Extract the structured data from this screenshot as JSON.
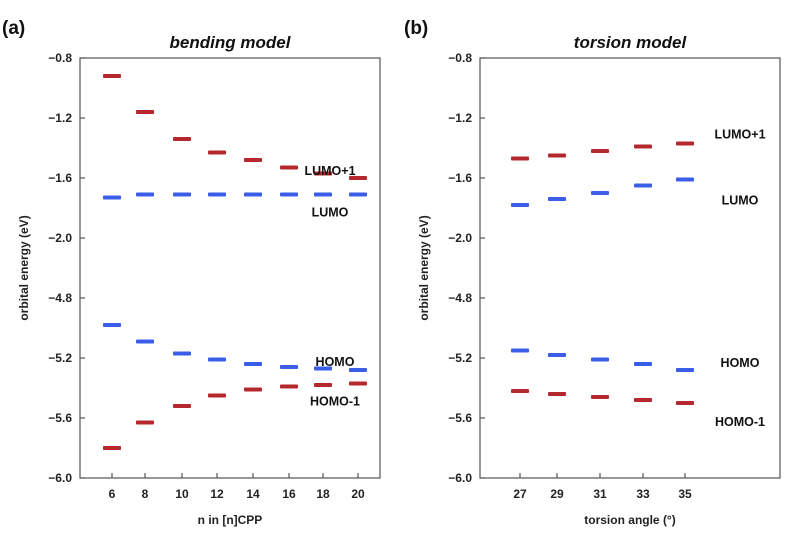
{
  "chart_data": [
    {
      "panel_label": "(a)",
      "title": "bending model",
      "type": "scatter",
      "marker": "horizontal-bar",
      "xlabel": "n in [n]CPP",
      "ylabel": "orbital energy (eV)",
      "categories": [
        "6",
        "8",
        "10",
        "12",
        "14",
        "16",
        "18",
        "20"
      ],
      "y_ticks": [
        "-0.8",
        "-1.2",
        "-1.6",
        "-2.0",
        "-4.8",
        "-5.2",
        "-5.6",
        "-6.0"
      ],
      "y_axis_break": "between -2.0 and -4.8",
      "series": [
        {
          "name": "LUMO+1",
          "color": "#b5282e",
          "values": [
            -0.92,
            -1.16,
            -1.34,
            -1.43,
            -1.48,
            -1.53,
            -1.57,
            -1.6
          ]
        },
        {
          "name": "LUMO",
          "color": "#3b5ee8",
          "values": [
            -1.73,
            -1.71,
            -1.71,
            -1.71,
            -1.71,
            -1.71,
            -1.71,
            -1.71
          ]
        },
        {
          "name": "HOMO",
          "color": "#3b5ee8",
          "values": [
            -4.98,
            -5.09,
            -5.17,
            -5.21,
            -5.24,
            -5.26,
            -5.27,
            -5.28
          ]
        },
        {
          "name": "HOMO-1",
          "color": "#b5282e",
          "values": [
            -5.8,
            -5.63,
            -5.52,
            -5.45,
            -5.41,
            -5.39,
            -5.38,
            -5.37
          ]
        }
      ]
    },
    {
      "panel_label": "(b)",
      "title": "torsion model",
      "type": "scatter",
      "marker": "horizontal-bar",
      "xlabel": "torsion angle (°)",
      "ylabel": "orbital energy (eV)",
      "categories": [
        "27",
        "29",
        "31",
        "33",
        "35"
      ],
      "y_ticks": [
        "-0.8",
        "-1.2",
        "-1.6",
        "-2.0",
        "-4.8",
        "-5.2",
        "-5.6",
        "-6.0"
      ],
      "y_axis_break": "between -2.0 and -4.8",
      "series": [
        {
          "name": "LUMO+1",
          "color": "#b5282e",
          "values": [
            -1.47,
            -1.45,
            -1.42,
            -1.39,
            -1.37
          ]
        },
        {
          "name": "LUMO",
          "color": "#3b5ee8",
          "values": [
            -1.78,
            -1.74,
            -1.7,
            -1.65,
            -1.61
          ]
        },
        {
          "name": "HOMO",
          "color": "#3b5ee8",
          "values": [
            -5.15,
            -5.18,
            -5.21,
            -5.24,
            -5.28
          ]
        },
        {
          "name": "HOMO-1",
          "color": "#b5282e",
          "values": [
            -5.42,
            -5.44,
            -5.46,
            -5.48,
            -5.5
          ]
        }
      ]
    }
  ]
}
